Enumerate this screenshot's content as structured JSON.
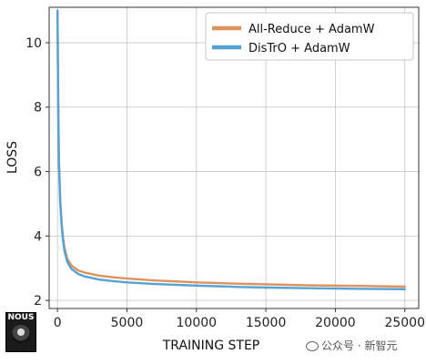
{
  "chart_data": {
    "type": "line",
    "xlabel": "TRAINING STEP",
    "ylabel": "LOSS",
    "xlim": [
      -600,
      26000
    ],
    "ylim": [
      1.75,
      11.1
    ],
    "xticks": [
      0,
      5000,
      10000,
      15000,
      20000,
      25000
    ],
    "yticks": [
      2,
      4,
      6,
      8,
      10
    ],
    "grid": true,
    "legend_position": "top-right",
    "series": [
      {
        "name": "All-Reduce + AdamW",
        "color": "#e0925c",
        "x": [
          0,
          50,
          100,
          200,
          300,
          400,
          500,
          700,
          1000,
          1500,
          2000,
          3000,
          4000,
          5000,
          7000,
          10000,
          13000,
          15000,
          18000,
          20000,
          22000,
          25000
        ],
        "y": [
          11.0,
          8.3,
          6.4,
          5.1,
          4.4,
          3.95,
          3.65,
          3.3,
          3.08,
          2.93,
          2.86,
          2.77,
          2.72,
          2.68,
          2.62,
          2.56,
          2.52,
          2.5,
          2.47,
          2.46,
          2.45,
          2.43
        ]
      },
      {
        "name": "DisTrO + AdamW",
        "color": "#55a3d6",
        "x": [
          0,
          50,
          100,
          200,
          300,
          400,
          500,
          700,
          1000,
          1500,
          2000,
          3000,
          4000,
          5000,
          7000,
          10000,
          13000,
          15000,
          18000,
          20000,
          22000,
          25000
        ],
        "y": [
          11.0,
          8.2,
          6.3,
          5.0,
          4.3,
          3.85,
          3.55,
          3.2,
          2.98,
          2.82,
          2.74,
          2.65,
          2.6,
          2.56,
          2.51,
          2.46,
          2.42,
          2.4,
          2.38,
          2.37,
          2.36,
          2.35
        ]
      }
    ]
  },
  "logo": {
    "text": "NOUS"
  },
  "watermark": {
    "text": "公众号 · 新智元"
  }
}
